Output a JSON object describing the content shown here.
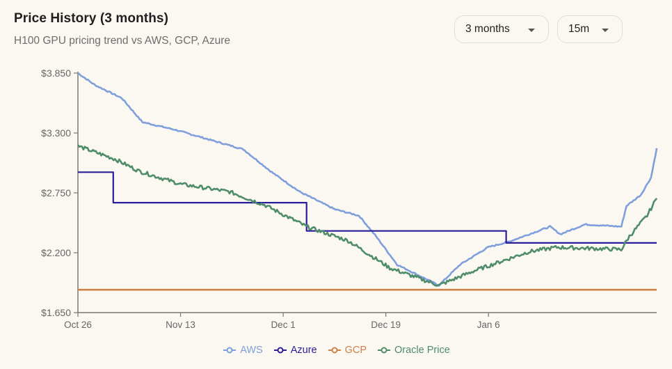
{
  "header": {
    "title": "Price History (3 months)",
    "subtitle": "H100 GPU pricing trend vs AWS, GCP, Azure"
  },
  "controls": {
    "range": {
      "selected": "3 months"
    },
    "interval": {
      "selected": "15m"
    }
  },
  "colors": {
    "background": "#fbf8f2",
    "axis": "#777777",
    "aws": "#7e9fdc",
    "azure": "#2a1d9a",
    "gcp": "#d0814a",
    "oracle": "#4e8c6a"
  },
  "chart_data": {
    "type": "line",
    "title": "Price History (3 months)",
    "subtitle": "H100 GPU pricing trend vs AWS, GCP, Azure",
    "xlabel": "",
    "ylabel": "",
    "x_tick_labels": [
      "Oct 26",
      "Nov 13",
      "Dec 1",
      "Dec 19",
      "Jan 6"
    ],
    "x_tick_days": [
      0,
      18,
      36,
      54,
      72
    ],
    "x_range_days": [
      0,
      101.5
    ],
    "y_tick_labels": [
      "$1.650",
      "$2.200",
      "$2.750",
      "$3.300",
      "$3.850"
    ],
    "y_ticks": [
      1.65,
      2.2,
      2.75,
      3.3,
      3.85
    ],
    "ylim": [
      1.65,
      3.85
    ],
    "grid": false,
    "legend_position": "bottom",
    "series": [
      {
        "name": "AWS",
        "color": "#7e9fdc",
        "step": false,
        "points": [
          [
            0,
            3.85
          ],
          [
            3,
            3.74
          ],
          [
            7.7,
            3.62
          ],
          [
            11.3,
            3.4
          ],
          [
            17,
            3.33
          ],
          [
            23,
            3.24
          ],
          [
            29,
            3.15
          ],
          [
            34,
            2.94
          ],
          [
            38.9,
            2.76
          ],
          [
            45,
            2.6
          ],
          [
            49.3,
            2.54
          ],
          [
            52.3,
            2.35
          ],
          [
            56,
            2.09
          ],
          [
            63.3,
            1.9
          ],
          [
            67,
            2.09
          ],
          [
            71.9,
            2.25
          ],
          [
            75.5,
            2.3
          ],
          [
            82.8,
            2.44
          ],
          [
            84.6,
            2.37
          ],
          [
            88.9,
            2.46
          ],
          [
            95.3,
            2.44
          ],
          [
            96.2,
            2.63
          ],
          [
            98.7,
            2.73
          ],
          [
            100.5,
            2.89
          ],
          [
            101.5,
            3.16
          ]
        ]
      },
      {
        "name": "Azure",
        "color": "#2a1d9a",
        "step": true,
        "points": [
          [
            0,
            2.94
          ],
          [
            6.2,
            2.94
          ],
          [
            6.2,
            2.66
          ],
          [
            40.1,
            2.66
          ],
          [
            40.1,
            2.4
          ],
          [
            75.1,
            2.4
          ],
          [
            75.1,
            2.29
          ],
          [
            101.5,
            2.29
          ]
        ]
      },
      {
        "name": "GCP",
        "color": "#d0814a",
        "step": false,
        "points": [
          [
            0,
            1.86
          ],
          [
            101.5,
            1.86
          ]
        ]
      },
      {
        "name": "Oracle Price",
        "color": "#4e8c6a",
        "step": false,
        "points": [
          [
            0,
            3.18
          ],
          [
            6.5,
            3.06
          ],
          [
            10.7,
            2.95
          ],
          [
            18,
            2.83
          ],
          [
            26.6,
            2.76
          ],
          [
            32.7,
            2.64
          ],
          [
            40.1,
            2.44
          ],
          [
            47.4,
            2.31
          ],
          [
            54.7,
            2.06
          ],
          [
            63.3,
            1.9
          ],
          [
            69.3,
            2.03
          ],
          [
            79.1,
            2.21
          ],
          [
            84,
            2.25
          ],
          [
            95.3,
            2.23
          ],
          [
            96.7,
            2.35
          ],
          [
            99.8,
            2.54
          ],
          [
            101.5,
            2.7
          ]
        ]
      }
    ]
  },
  "legend": [
    {
      "label": "AWS",
      "color": "#7e9fdc"
    },
    {
      "label": "Azure",
      "color": "#2a1d9a"
    },
    {
      "label": "GCP",
      "color": "#d0814a"
    },
    {
      "label": "Oracle Price",
      "color": "#4e8c6a"
    }
  ]
}
